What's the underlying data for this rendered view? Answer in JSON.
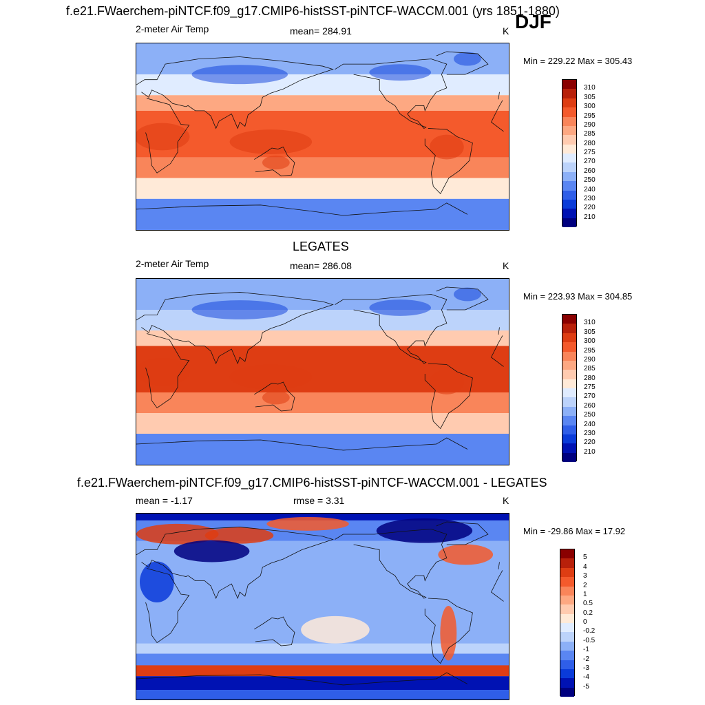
{
  "header": {
    "title": "f.e21.FWaerchem-piNTCF.f09_g17.CMIP6-histSST-piNTCF-WACCM.001 (yrs 1851-1880)",
    "season": "DJF"
  },
  "palettes": {
    "temperature": [
      "#00007f",
      "#0012b3",
      "#0a3bd9",
      "#2f5ee8",
      "#5a86f2",
      "#8cb0f7",
      "#bcd3fb",
      "#e0ecff",
      "#ffead8",
      "#ffcbb0",
      "#fda882",
      "#f9855a",
      "#f45a2c",
      "#de3d13",
      "#b8200a",
      "#8a0000"
    ],
    "difference": [
      "#00007f",
      "#0012b3",
      "#0a3bd9",
      "#2f5ee8",
      "#5a86f2",
      "#8cb0f7",
      "#bcd3fb",
      "#e0ecff",
      "#ffead8",
      "#ffcbb0",
      "#fda882",
      "#f9855a",
      "#f45a2c",
      "#de3d13",
      "#b8200a",
      "#8a0000"
    ]
  },
  "panels": [
    {
      "id": "model",
      "variable": "2-meter Air Temp",
      "stat": "mean= 284.91",
      "units": "K",
      "minmax": "Min = 229.22 Max = 305.43",
      "cbar_labels": [
        "310",
        "305",
        "300",
        "295",
        "290",
        "285",
        "280",
        "275",
        "270",
        "260",
        "250",
        "240",
        "230",
        "220",
        "210"
      ]
    },
    {
      "id": "obs",
      "heading": "LEGATES",
      "variable": "2-meter Air Temp",
      "stat": "mean= 286.08",
      "units": "K",
      "minmax": "Min = 223.93 Max = 304.85",
      "cbar_labels": [
        "310",
        "305",
        "300",
        "295",
        "290",
        "285",
        "280",
        "275",
        "270",
        "260",
        "250",
        "240",
        "230",
        "220",
        "210"
      ]
    },
    {
      "id": "diff",
      "heading": "f.e21.FWaerchem-piNTCF.f09_g17.CMIP6-histSST-piNTCF-WACCM.001 - LEGATES",
      "stat_left": "mean =  -1.17",
      "stat_mid": "rmse =   3.31",
      "units": "K",
      "minmax": "Min = -29.86 Max =  17.92",
      "cbar_labels": [
        "5",
        "4",
        "3",
        "2",
        "1",
        "0.5",
        "0.2",
        "0",
        "-0.2",
        "-0.5",
        "-1",
        "-2",
        "-3",
        "-4",
        "-5"
      ]
    }
  ],
  "chart_data": [
    {
      "type": "heatmap",
      "title": "f.e21.FWaerchem-piNTCF.f09_g17.CMIP6-histSST-piNTCF-WACCM.001 (yrs 1851-1880)",
      "subtitle": "2-meter Air Temp",
      "units": "K",
      "mean": 284.91,
      "min": 229.22,
      "max": 305.43,
      "levels": [
        210,
        220,
        230,
        240,
        250,
        260,
        270,
        275,
        280,
        285,
        290,
        295,
        300,
        305,
        310
      ],
      "lat_bands_north_to_south": [
        {
          "lat": [
            60,
            90
          ],
          "level_K": 255
        },
        {
          "lat": [
            40,
            60
          ],
          "level_K": 270
        },
        {
          "lat": [
            25,
            40
          ],
          "level_K": 285
        },
        {
          "lat": [
            -20,
            25
          ],
          "level_K": 298
        },
        {
          "lat": [
            -40,
            -20
          ],
          "level_K": 290
        },
        {
          "lat": [
            -60,
            -40
          ],
          "level_K": 278
        },
        {
          "lat": [
            -90,
            -60
          ],
          "level_K": 245
        }
      ]
    },
    {
      "type": "heatmap",
      "title": "LEGATES",
      "subtitle": "2-meter Air Temp",
      "units": "K",
      "mean": 286.08,
      "min": 223.93,
      "max": 304.85,
      "levels": [
        210,
        220,
        230,
        240,
        250,
        260,
        270,
        275,
        280,
        285,
        290,
        295,
        300,
        305,
        310
      ],
      "lat_bands_north_to_south": [
        {
          "lat": [
            60,
            90
          ],
          "level_K": 250
        },
        {
          "lat": [
            40,
            60
          ],
          "level_K": 265
        },
        {
          "lat": [
            25,
            40
          ],
          "level_K": 283
        },
        {
          "lat": [
            -20,
            25
          ],
          "level_K": 300
        },
        {
          "lat": [
            -40,
            -20
          ],
          "level_K": 292
        },
        {
          "lat": [
            -60,
            -40
          ],
          "level_K": 280
        },
        {
          "lat": [
            -90,
            -60
          ],
          "level_K": 240
        }
      ]
    },
    {
      "type": "heatmap",
      "title": "f.e21.FWaerchem-piNTCF.f09_g17.CMIP6-histSST-piNTCF-WACCM.001 - LEGATES",
      "units": "K",
      "mean": -1.17,
      "rmse": 3.31,
      "min": -29.86,
      "max": 17.92,
      "levels": [
        -5,
        -4,
        -3,
        -2,
        -1,
        -0.5,
        -0.2,
        0,
        0.2,
        0.5,
        1,
        2,
        3,
        4,
        5
      ]
    }
  ]
}
